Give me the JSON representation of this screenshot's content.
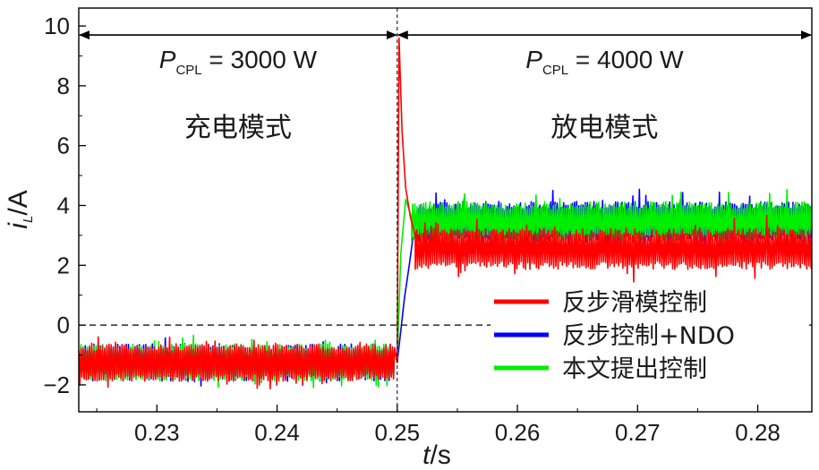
{
  "chart_data": {
    "type": "line",
    "title": "",
    "xlabel": "t/s",
    "xlabel_italic": "t",
    "xlabel_unit": "/s",
    "ylabel": "iL/A",
    "ylabel_italic": "i",
    "ylabel_sub": "L",
    "ylabel_unit": "/A",
    "xlim": [
      0.2235,
      0.2845
    ],
    "ylim": [
      -2.9,
      10.6
    ],
    "xticks": [
      0.23,
      0.24,
      0.25,
      0.26,
      0.27,
      0.28
    ],
    "xtick_labels": [
      "0.23",
      "0.24",
      "0.25",
      "0.26",
      "0.27",
      "0.28"
    ],
    "yticks": [
      -2,
      0,
      2,
      4,
      6,
      8,
      10
    ],
    "ytick_labels": [
      "−2",
      "0",
      "2",
      "4",
      "6",
      "8",
      "10"
    ],
    "switch_time": 0.25,
    "reference_line_y": 0.0,
    "annotations": [
      {
        "id": "left",
        "symbol": "P",
        "subscript": "CPL",
        "rest": " = 3000 W",
        "mode": "充电模式",
        "x_range": [
          0.2235,
          0.25
        ],
        "arrow_y": 9.7,
        "text_y": 8.6,
        "mode_y": 6.3
      },
      {
        "id": "right",
        "symbol": "P",
        "subscript": "CPL",
        "rest": " = 4000 W",
        "mode": "放电模式",
        "x_range": [
          0.25,
          0.2845
        ],
        "arrow_y": 9.7,
        "text_y": 8.6,
        "mode_y": 6.3
      }
    ],
    "series": [
      {
        "name": "反步滑模控制",
        "color": "#ff0000",
        "pre_mean": -1.25,
        "pre_band": 0.5,
        "peak": 9.6,
        "post_mean": 2.55,
        "post_band": 0.55
      },
      {
        "name": "反步控制+NDO",
        "color": "#0000ff",
        "pre_mean": -1.25,
        "pre_band": 0.5,
        "peak": 2.9,
        "post_mean": 3.45,
        "post_band": 0.55
      },
      {
        "name": "本文提出控制",
        "color": "#00ee00",
        "pre_mean": -1.25,
        "pre_band": 0.5,
        "peak": 4.2,
        "post_mean": 3.45,
        "post_band": 0.55
      }
    ],
    "draw_order": [
      1,
      2,
      0
    ],
    "legend_position": "lower-right"
  }
}
